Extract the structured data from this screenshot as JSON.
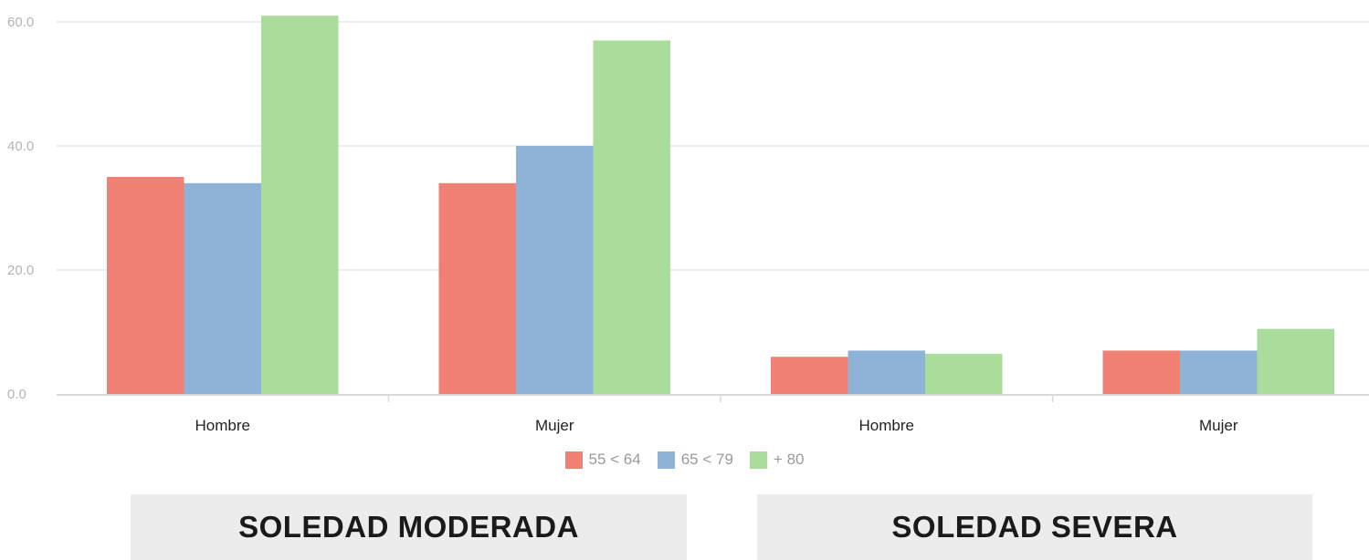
{
  "chart_data": {
    "type": "bar",
    "categories": [
      "Hombre",
      "Mujer",
      "Hombre",
      "Mujer"
    ],
    "series": [
      {
        "name": "55 < 64",
        "color": "#f07f74",
        "values": [
          35.0,
          34.0,
          6.0,
          7.0
        ]
      },
      {
        "name": "65 < 79",
        "color": "#8fb3d6",
        "values": [
          34.0,
          40.0,
          7.0,
          7.0
        ]
      },
      {
        "name": "+ 80",
        "color": "#aadd9b",
        "values": [
          61.0,
          57.0,
          6.5,
          10.5
        ]
      }
    ],
    "yticks": [
      "0.0",
      "20.0",
      "40.0",
      "60.0"
    ],
    "ylim": [
      0,
      60
    ],
    "grid": true,
    "legend_position": "bottom-center",
    "title": "",
    "xlabel": "",
    "ylabel": ""
  },
  "groups": {
    "left": "SOLEDAD MODERADA",
    "right": "SOLEDAD SEVERA"
  }
}
